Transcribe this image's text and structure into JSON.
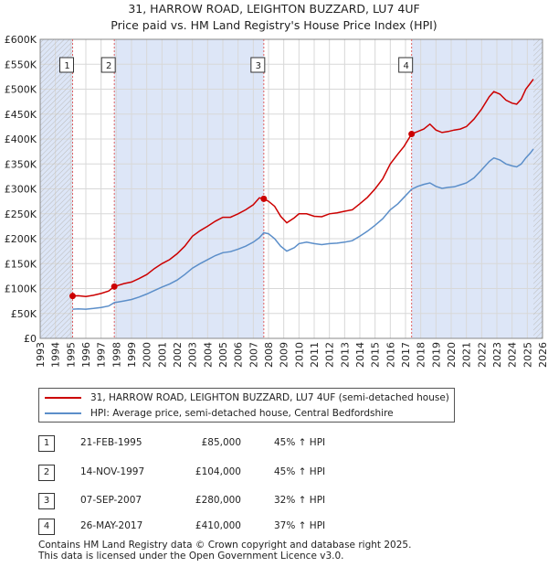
{
  "chart_data": {
    "type": "line",
    "title": "31, HARROW ROAD, LEIGHTON BUZZARD, LU7 4UF",
    "subtitle": "Price paid vs. HM Land Registry's House Price Index (HPI)",
    "x_range": [
      1993,
      2026
    ],
    "ylim": [
      0,
      600000
    ],
    "y_ticks": [
      {
        "value": 0,
        "label": "£0"
      },
      {
        "value": 50000,
        "label": "£50K"
      },
      {
        "value": 100000,
        "label": "£100K"
      },
      {
        "value": 150000,
        "label": "£150K"
      },
      {
        "value": 200000,
        "label": "£200K"
      },
      {
        "value": 250000,
        "label": "£250K"
      },
      {
        "value": 300000,
        "label": "£300K"
      },
      {
        "value": 350000,
        "label": "£350K"
      },
      {
        "value": 400000,
        "label": "£400K"
      },
      {
        "value": 450000,
        "label": "£450K"
      },
      {
        "value": 500000,
        "label": "£500K"
      },
      {
        "value": 550000,
        "label": "£550K"
      },
      {
        "value": 600000,
        "label": "£600K"
      }
    ],
    "x_ticks": [
      "1993",
      "1994",
      "1995",
      "1996",
      "1997",
      "1998",
      "1999",
      "2000",
      "2001",
      "2002",
      "2003",
      "2004",
      "2005",
      "2006",
      "2007",
      "2008",
      "2009",
      "2010",
      "2011",
      "2012",
      "2013",
      "2014",
      "2015",
      "2016",
      "2017",
      "2018",
      "2019",
      "2020",
      "2021",
      "2022",
      "2023",
      "2024",
      "2025",
      "2026"
    ],
    "data_start": 1995.13,
    "data_end": 2025.4,
    "series": [
      {
        "name": "31, HARROW ROAD, LEIGHTON BUZZARD, LU7 4UF (semi-detached house)",
        "color": "#cc0000",
        "points": [
          [
            1995.13,
            85000
          ],
          [
            1995.5,
            85500
          ],
          [
            1996.0,
            84000
          ],
          [
            1996.5,
            86500
          ],
          [
            1997.0,
            90000
          ],
          [
            1997.5,
            95000
          ],
          [
            1997.87,
            104000
          ],
          [
            1998.5,
            110000
          ],
          [
            1999.0,
            113000
          ],
          [
            1999.5,
            120000
          ],
          [
            2000.0,
            128000
          ],
          [
            2000.5,
            140000
          ],
          [
            2001.0,
            150000
          ],
          [
            2001.5,
            158000
          ],
          [
            2002.0,
            170000
          ],
          [
            2002.5,
            185000
          ],
          [
            2003.0,
            205000
          ],
          [
            2003.5,
            216000
          ],
          [
            2004.0,
            225000
          ],
          [
            2004.5,
            235000
          ],
          [
            2005.0,
            243000
          ],
          [
            2005.5,
            243000
          ],
          [
            2006.0,
            250000
          ],
          [
            2006.5,
            258000
          ],
          [
            2007.0,
            268000
          ],
          [
            2007.4,
            282000
          ],
          [
            2007.69,
            280000
          ],
          [
            2008.0,
            275000
          ],
          [
            2008.4,
            265000
          ],
          [
            2008.8,
            245000
          ],
          [
            2009.2,
            232000
          ],
          [
            2009.7,
            242000
          ],
          [
            2010.0,
            250000
          ],
          [
            2010.5,
            250000
          ],
          [
            2011.0,
            245000
          ],
          [
            2011.5,
            244000
          ],
          [
            2012.0,
            250000
          ],
          [
            2012.5,
            252000
          ],
          [
            2013.0,
            255000
          ],
          [
            2013.5,
            258000
          ],
          [
            2014.0,
            270000
          ],
          [
            2014.5,
            283000
          ],
          [
            2015.0,
            300000
          ],
          [
            2015.5,
            320000
          ],
          [
            2016.0,
            350000
          ],
          [
            2016.5,
            370000
          ],
          [
            2016.9,
            385000
          ],
          [
            2017.4,
            410000
          ],
          [
            2017.8,
            415000
          ],
          [
            2018.2,
            420000
          ],
          [
            2018.6,
            430000
          ],
          [
            2019.0,
            418000
          ],
          [
            2019.4,
            413000
          ],
          [
            2019.8,
            415000
          ],
          [
            2020.2,
            418000
          ],
          [
            2020.6,
            420000
          ],
          [
            2021.0,
            425000
          ],
          [
            2021.5,
            440000
          ],
          [
            2022.0,
            460000
          ],
          [
            2022.5,
            485000
          ],
          [
            2022.8,
            495000
          ],
          [
            2023.2,
            490000
          ],
          [
            2023.6,
            478000
          ],
          [
            2024.0,
            472000
          ],
          [
            2024.3,
            470000
          ],
          [
            2024.6,
            480000
          ],
          [
            2024.9,
            500000
          ],
          [
            2025.2,
            512000
          ],
          [
            2025.4,
            520000
          ]
        ]
      },
      {
        "name": "HPI: Average price, semi-detached house, Central Bedfordshire",
        "color": "#5b8ec9",
        "points": [
          [
            1995.13,
            58500
          ],
          [
            1995.5,
            59000
          ],
          [
            1996.0,
            58500
          ],
          [
            1996.5,
            60000
          ],
          [
            1997.0,
            62000
          ],
          [
            1997.5,
            65000
          ],
          [
            1997.87,
            71700
          ],
          [
            1998.5,
            75000
          ],
          [
            1999.0,
            78000
          ],
          [
            1999.5,
            83000
          ],
          [
            2000.0,
            89000
          ],
          [
            2000.5,
            96000
          ],
          [
            2001.0,
            103000
          ],
          [
            2001.5,
            109000
          ],
          [
            2002.0,
            117000
          ],
          [
            2002.5,
            128000
          ],
          [
            2003.0,
            141000
          ],
          [
            2003.5,
            150000
          ],
          [
            2004.0,
            158000
          ],
          [
            2004.5,
            166000
          ],
          [
            2005.0,
            172000
          ],
          [
            2005.5,
            174000
          ],
          [
            2006.0,
            179000
          ],
          [
            2006.5,
            185000
          ],
          [
            2007.0,
            193000
          ],
          [
            2007.4,
            202000
          ],
          [
            2007.69,
            212000
          ],
          [
            2008.0,
            210000
          ],
          [
            2008.4,
            200000
          ],
          [
            2008.8,
            185000
          ],
          [
            2009.2,
            175000
          ],
          [
            2009.7,
            182000
          ],
          [
            2010.0,
            190000
          ],
          [
            2010.5,
            193000
          ],
          [
            2011.0,
            190000
          ],
          [
            2011.5,
            188000
          ],
          [
            2012.0,
            190000
          ],
          [
            2012.5,
            191000
          ],
          [
            2013.0,
            193000
          ],
          [
            2013.5,
            196000
          ],
          [
            2014.0,
            205000
          ],
          [
            2014.5,
            215000
          ],
          [
            2015.0,
            227000
          ],
          [
            2015.5,
            240000
          ],
          [
            2016.0,
            258000
          ],
          [
            2016.5,
            270000
          ],
          [
            2016.9,
            283000
          ],
          [
            2017.4,
            299000
          ],
          [
            2017.8,
            305000
          ],
          [
            2018.2,
            309000
          ],
          [
            2018.6,
            312000
          ],
          [
            2019.0,
            305000
          ],
          [
            2019.4,
            301000
          ],
          [
            2019.8,
            303000
          ],
          [
            2020.2,
            304000
          ],
          [
            2020.6,
            308000
          ],
          [
            2021.0,
            312000
          ],
          [
            2021.5,
            322000
          ],
          [
            2022.0,
            338000
          ],
          [
            2022.5,
            355000
          ],
          [
            2022.8,
            362000
          ],
          [
            2023.2,
            358000
          ],
          [
            2023.6,
            350000
          ],
          [
            2024.0,
            346000
          ],
          [
            2024.3,
            344000
          ],
          [
            2024.6,
            350000
          ],
          [
            2024.9,
            362000
          ],
          [
            2025.2,
            372000
          ],
          [
            2025.4,
            380000
          ]
        ]
      }
    ],
    "sales": [
      {
        "num": "1",
        "x": 1995.13,
        "price": 85000
      },
      {
        "num": "2",
        "x": 1997.87,
        "price": 104000
      },
      {
        "num": "3",
        "x": 2007.69,
        "price": 280000
      },
      {
        "num": "4",
        "x": 2017.4,
        "price": 410000
      }
    ],
    "shaded_ranges": [
      [
        1993,
        1995.13
      ],
      [
        1997.87,
        2007.69
      ],
      [
        2017.4,
        2026
      ],
      [
        2025.4,
        2026
      ]
    ],
    "colors": {
      "property": "#cc0000",
      "hpi": "#5b8ec9",
      "band": "#dde6f7",
      "grid": "#d8d8d8",
      "vline": "#e06060"
    }
  },
  "legend": {
    "property_label": "31, HARROW ROAD, LEIGHTON BUZZARD, LU7 4UF (semi-detached house)",
    "hpi_label": "HPI: Average price, semi-detached house, Central Bedfordshire"
  },
  "table": [
    {
      "num": "1",
      "date": "21-FEB-1995",
      "price": "£85,000",
      "hpi": "45% ↑ HPI"
    },
    {
      "num": "2",
      "date": "14-NOV-1997",
      "price": "£104,000",
      "hpi": "45% ↑ HPI"
    },
    {
      "num": "3",
      "date": "07-SEP-2007",
      "price": "£280,000",
      "hpi": "32% ↑ HPI"
    },
    {
      "num": "4",
      "date": "26-MAY-2017",
      "price": "£410,000",
      "hpi": "37% ↑ HPI"
    }
  ],
  "footer": {
    "line1": "Contains HM Land Registry data © Crown copyright and database right 2025.",
    "line2": "This data is licensed under the Open Government Licence v3.0."
  }
}
